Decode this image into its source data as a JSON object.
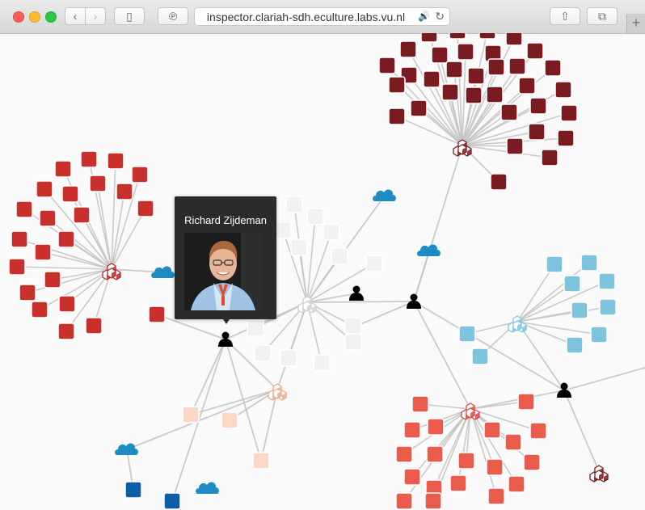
{
  "browser": {
    "url": "inspector.clariah-sdh.eculture.labs.vu.nl",
    "nav_back_icon": "‹",
    "nav_forward_icon": "›",
    "sidebar_icon": "▯",
    "pinterest_icon": "℗",
    "share_icon": "⇧",
    "tabs_icon": "⧉",
    "reload_icon": "↻",
    "audio_icon": "🔊",
    "new_tab_icon": "+"
  },
  "tooltip": {
    "name": "Richard Zijdeman"
  },
  "colors": {
    "dark_red": "#7a1b22",
    "red": "#c9302c",
    "coral": "#ea5b4c",
    "light_blue": "#7ec4df",
    "pale_peach": "#fbd8c6",
    "pale_grey": "#f2f2f2",
    "cloud_blue": "#1d8bc4",
    "dark_blue": "#0d5ea7",
    "edge": "#c4c4c4",
    "person": "#000000"
  }
}
